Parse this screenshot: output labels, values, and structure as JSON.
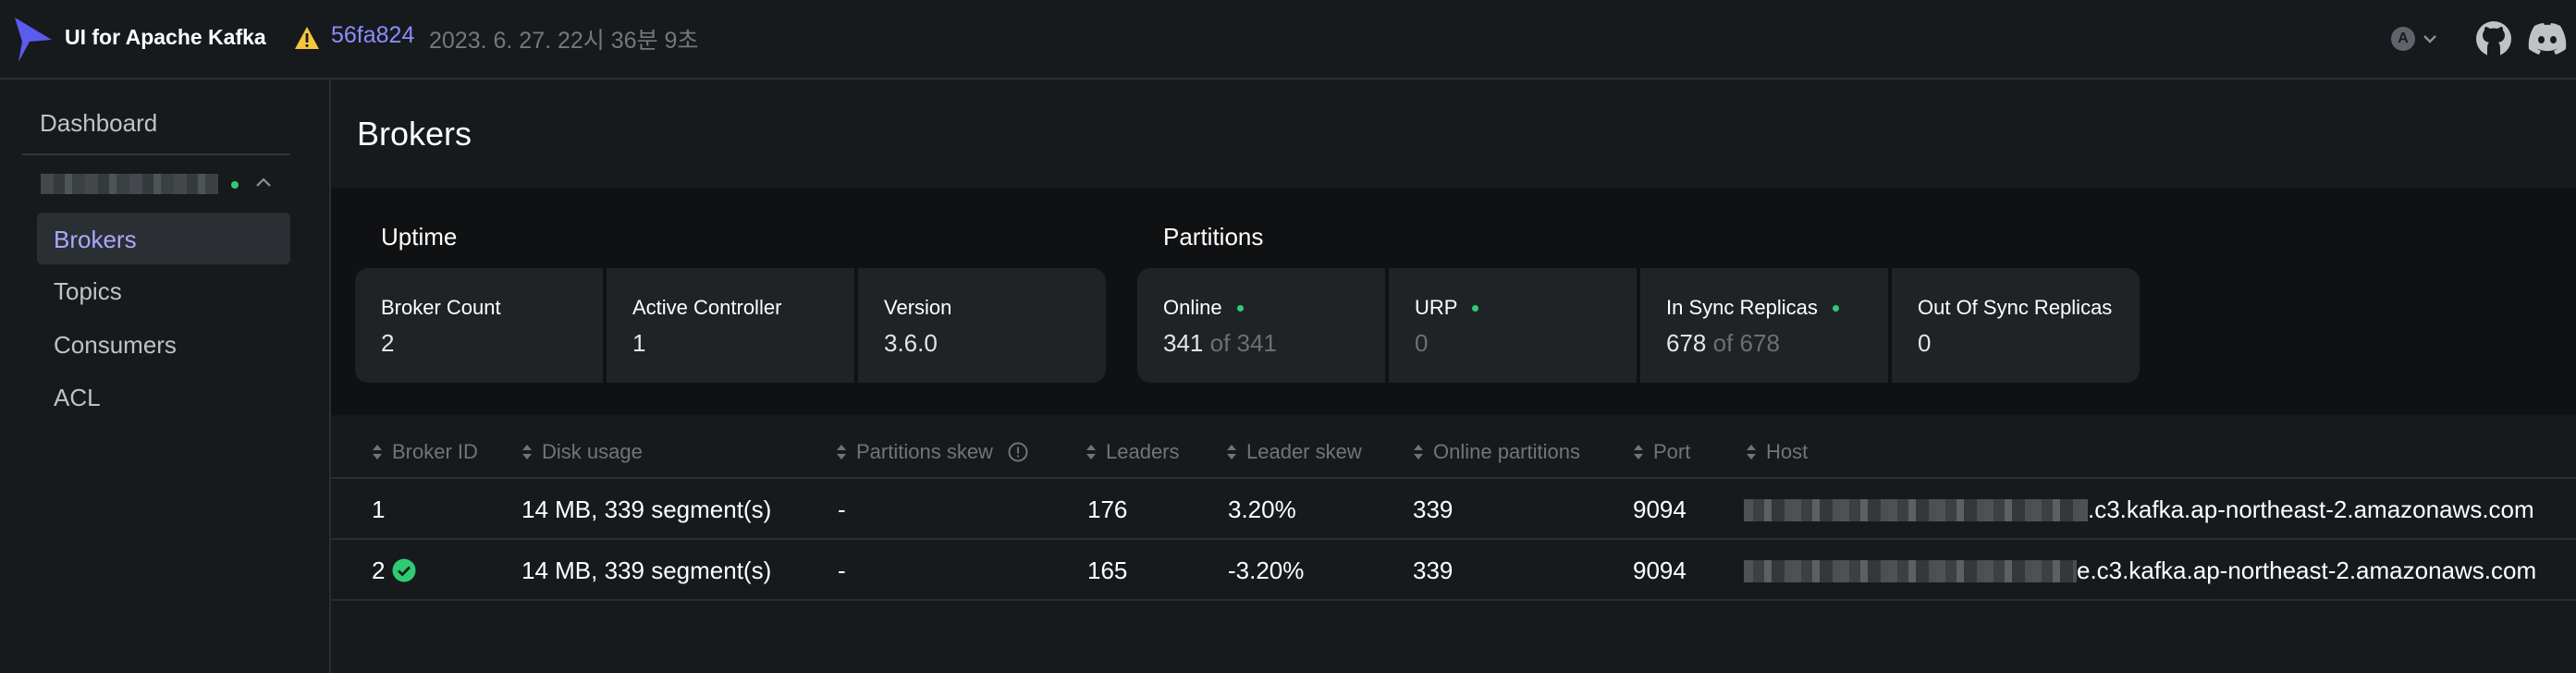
{
  "header": {
    "app_title": "UI for Apache Kafka",
    "commit": "56fa824",
    "build_date": "2023. 6. 27. 22시 36분 9초",
    "user_initial": "A"
  },
  "sidebar": {
    "dashboard_label": "Dashboard",
    "items": [
      {
        "label": "Brokers",
        "active": true
      },
      {
        "label": "Topics",
        "active": false
      },
      {
        "label": "Consumers",
        "active": false
      },
      {
        "label": "ACL",
        "active": false
      }
    ]
  },
  "page": {
    "title": "Brokers"
  },
  "uptime": {
    "title": "Uptime",
    "cards": [
      {
        "label": "Broker Count",
        "value": "2"
      },
      {
        "label": "Active Controller",
        "value": "1"
      },
      {
        "label": "Version",
        "value": "3.6.0"
      }
    ]
  },
  "partitions": {
    "title": "Partitions",
    "cards": [
      {
        "label": "Online",
        "value": "341",
        "of": "of 341"
      },
      {
        "label": "URP",
        "value": "0"
      },
      {
        "label": "In Sync Replicas",
        "value": "678",
        "of": "of 678"
      },
      {
        "label": "Out Of Sync Replicas",
        "value": "0"
      }
    ]
  },
  "table": {
    "columns": [
      "Broker ID",
      "Disk usage",
      "Partitions skew",
      "Leaders",
      "Leader skew",
      "Online partitions",
      "Port",
      "Host"
    ],
    "rows": [
      {
        "broker_id": "1",
        "disk_usage": "14 MB, 339 segment(s)",
        "partitions_skew": "-",
        "leaders": "176",
        "leader_skew": "3.20%",
        "online_partitions": "339",
        "port": "9094",
        "host_suffix": ".c3.kafka.ap-northeast-2.amazonaws.com",
        "controller": false
      },
      {
        "broker_id": "2",
        "disk_usage": "14 MB, 339 segment(s)",
        "partitions_skew": "-",
        "leaders": "165",
        "leader_skew": "-3.20%",
        "online_partitions": "339",
        "port": "9094",
        "host_suffix": "e.c3.kafka.ap-northeast-2.amazonaws.com",
        "controller": true
      }
    ]
  },
  "colors": {
    "accent": "#a9a9ff",
    "commit_link": "#8c8cff",
    "status_ok": "#2ecc71",
    "warning": "#f5c542",
    "logo": "#5b5bf0"
  },
  "icons": {
    "logo": "kafka-logo-icon",
    "warning": "warning-icon",
    "github": "github-icon",
    "discord": "discord-icon",
    "sort": "sort-icon",
    "info": "info-icon",
    "controller": "check-circle-icon"
  }
}
